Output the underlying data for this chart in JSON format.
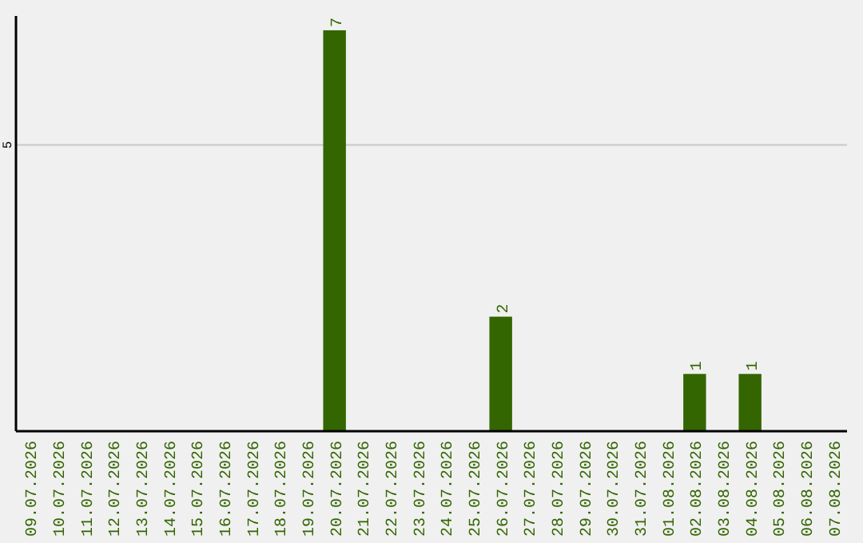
{
  "chart_data": {
    "type": "bar",
    "categories": [
      "09.07.2026",
      "10.07.2026",
      "11.07.2026",
      "12.07.2026",
      "13.07.2026",
      "14.07.2026",
      "15.07.2026",
      "16.07.2026",
      "17.07.2026",
      "18.07.2026",
      "19.07.2026",
      "20.07.2026",
      "21.07.2026",
      "22.07.2026",
      "23.07.2026",
      "24.07.2026",
      "25.07.2026",
      "26.07.2026",
      "27.07.2026",
      "28.07.2026",
      "29.07.2026",
      "30.07.2026",
      "31.07.2026",
      "01.08.2026",
      "02.08.2026",
      "03.08.2026",
      "04.08.2026",
      "05.08.2026",
      "06.08.2026",
      "07.08.2026"
    ],
    "values": [
      0,
      0,
      0,
      0,
      0,
      0,
      0,
      0,
      0,
      0,
      0,
      7,
      0,
      0,
      0,
      0,
      0,
      2,
      0,
      0,
      0,
      0,
      0,
      0,
      1,
      0,
      1,
      0,
      0,
      0
    ],
    "color": "#336600",
    "ylim": [
      0,
      7.25
    ],
    "yticks": [
      5
    ],
    "grid": "y",
    "value_labels": [
      null,
      null,
      null,
      null,
      null,
      null,
      null,
      null,
      null,
      null,
      null,
      "7",
      null,
      null,
      null,
      null,
      null,
      "2",
      null,
      null,
      null,
      null,
      null,
      null,
      "1",
      null,
      "1",
      null,
      null,
      null
    ]
  }
}
